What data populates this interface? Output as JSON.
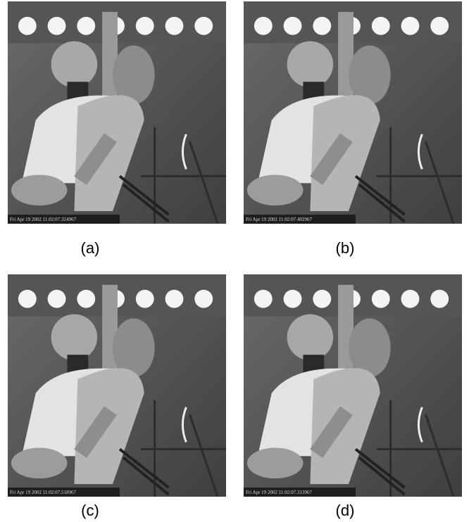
{
  "panels": [
    {
      "caption": "(a)",
      "timestamp": "Fri Apr 19 2002 11:02:07.324967"
    },
    {
      "caption": "(b)",
      "timestamp": "Fri Apr 19 2002 11:02:07.402967"
    },
    {
      "caption": "(c)",
      "timestamp": "Fri Apr 19 2002 11:02:07.518967"
    },
    {
      "caption": "(d)",
      "timestamp": "Fri Apr 19 2002 11:02:07.313967"
    }
  ]
}
